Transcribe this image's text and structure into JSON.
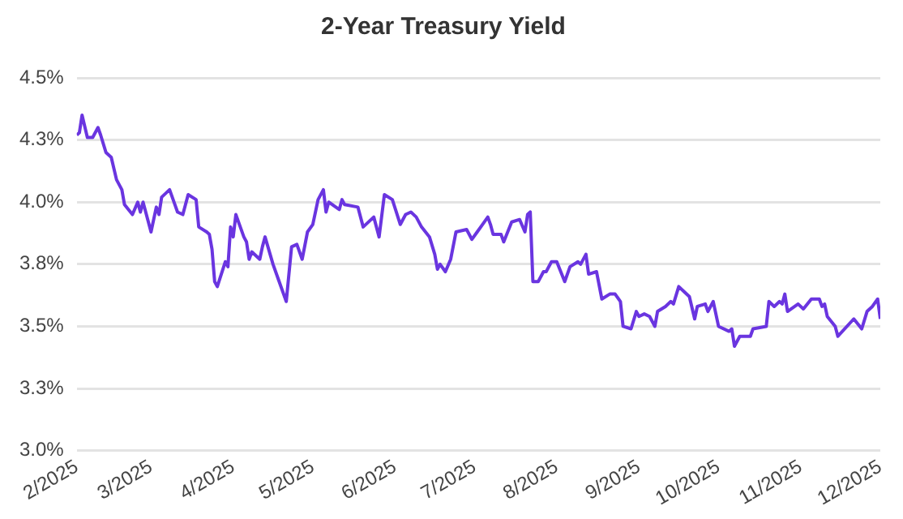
{
  "chart_data": {
    "type": "line",
    "title": "2-Year Treasury Yield",
    "x": [
      "2025-02-01",
      "2025-02-02",
      "2025-02-03",
      "2025-02-05",
      "2025-02-07",
      "2025-02-09",
      "2025-02-10",
      "2025-02-12",
      "2025-02-14",
      "2025-02-16",
      "2025-02-18",
      "2025-02-19",
      "2025-02-22",
      "2025-02-24",
      "2025-02-25",
      "2025-02-26",
      "2025-03-01",
      "2025-03-03",
      "2025-03-04",
      "2025-03-05",
      "2025-03-08",
      "2025-03-11",
      "2025-03-13",
      "2025-03-15",
      "2025-03-18",
      "2025-03-19",
      "2025-03-22",
      "2025-03-23",
      "2025-03-24",
      "2025-03-25",
      "2025-03-26",
      "2025-03-29",
      "2025-03-30",
      "2025-03-31",
      "2025-04-01",
      "2025-04-02",
      "2025-04-05",
      "2025-04-06",
      "2025-04-07",
      "2025-04-08",
      "2025-04-11",
      "2025-04-12",
      "2025-04-13",
      "2025-04-16",
      "2025-04-18",
      "2025-04-21",
      "2025-04-23",
      "2025-04-25",
      "2025-04-27",
      "2025-04-29",
      "2025-05-01",
      "2025-05-03",
      "2025-05-05",
      "2025-05-06",
      "2025-05-07",
      "2025-05-11",
      "2025-05-12",
      "2025-05-13",
      "2025-05-18",
      "2025-05-20",
      "2025-05-24",
      "2025-05-26",
      "2025-05-28",
      "2025-05-31",
      "2025-06-03",
      "2025-06-05",
      "2025-06-07",
      "2025-06-09",
      "2025-06-11",
      "2025-06-14",
      "2025-06-16",
      "2025-06-17",
      "2025-06-18",
      "2025-06-20",
      "2025-06-22",
      "2025-06-24",
      "2025-06-28",
      "2025-06-30",
      "2025-07-02",
      "2025-07-04",
      "2025-07-06",
      "2025-07-07",
      "2025-07-08",
      "2025-07-11",
      "2025-07-12",
      "2025-07-15",
      "2025-07-18",
      "2025-07-20",
      "2025-07-21",
      "2025-07-22",
      "2025-07-23",
      "2025-07-25",
      "2025-07-27",
      "2025-07-28",
      "2025-07-30",
      "2025-08-01",
      "2025-08-04",
      "2025-08-06",
      "2025-08-09",
      "2025-08-10",
      "2025-08-12",
      "2025-08-13",
      "2025-08-16",
      "2025-08-18",
      "2025-08-21",
      "2025-08-23",
      "2025-08-25",
      "2025-08-26",
      "2025-08-29",
      "2025-08-31",
      "2025-09-01",
      "2025-09-03",
      "2025-09-05",
      "2025-09-07",
      "2025-09-08",
      "2025-09-11",
      "2025-09-13",
      "2025-09-14",
      "2025-09-16",
      "2025-09-20",
      "2025-09-22",
      "2025-09-23",
      "2025-09-26",
      "2025-09-27",
      "2025-09-29",
      "2025-10-01",
      "2025-10-05",
      "2025-10-06",
      "2025-10-07",
      "2025-10-09",
      "2025-10-13",
      "2025-10-14",
      "2025-10-19",
      "2025-10-20",
      "2025-10-22",
      "2025-10-24",
      "2025-10-25",
      "2025-10-26",
      "2025-10-27",
      "2025-10-31",
      "2025-11-02",
      "2025-11-05",
      "2025-11-08",
      "2025-11-09",
      "2025-11-10",
      "2025-11-11",
      "2025-11-14",
      "2025-11-15",
      "2025-11-21",
      "2025-11-24",
      "2025-11-26",
      "2025-11-28",
      "2025-11-30",
      "2025-12-01"
    ],
    "series": [
      {
        "color": "#6a35e0",
        "values": [
          4.27,
          4.28,
          4.35,
          4.26,
          4.26,
          4.3,
          4.27,
          4.2,
          4.18,
          4.09,
          4.05,
          3.99,
          3.95,
          4.0,
          3.96,
          4.0,
          3.88,
          3.98,
          3.95,
          4.02,
          4.05,
          3.96,
          3.95,
          4.03,
          4.01,
          3.9,
          3.88,
          3.87,
          3.81,
          3.68,
          3.66,
          3.76,
          3.74,
          3.9,
          3.86,
          3.95,
          3.86,
          3.84,
          3.77,
          3.8,
          3.77,
          3.82,
          3.86,
          3.75,
          3.69,
          3.6,
          3.82,
          3.83,
          3.77,
          3.88,
          3.91,
          4.01,
          4.05,
          3.96,
          4.0,
          3.97,
          4.01,
          3.99,
          3.98,
          3.9,
          3.94,
          3.86,
          4.03,
          4.01,
          3.91,
          3.95,
          3.96,
          3.94,
          3.9,
          3.86,
          3.79,
          3.73,
          3.75,
          3.72,
          3.77,
          3.88,
          3.89,
          3.85,
          3.88,
          3.91,
          3.94,
          3.91,
          3.87,
          3.87,
          3.84,
          3.92,
          3.93,
          3.88,
          3.95,
          3.96,
          3.68,
          3.68,
          3.72,
          3.72,
          3.76,
          3.76,
          3.68,
          3.74,
          3.76,
          3.75,
          3.79,
          3.71,
          3.72,
          3.61,
          3.63,
          3.63,
          3.6,
          3.5,
          3.49,
          3.56,
          3.54,
          3.55,
          3.54,
          3.5,
          3.56,
          3.58,
          3.6,
          3.59,
          3.66,
          3.62,
          3.53,
          3.58,
          3.59,
          3.56,
          3.6,
          3.5,
          3.48,
          3.49,
          3.42,
          3.46,
          3.46,
          3.49,
          3.5,
          3.6,
          3.58,
          3.6,
          3.59,
          3.63,
          3.56,
          3.59,
          3.57,
          3.61,
          3.61,
          3.58,
          3.59,
          3.54,
          3.5,
          3.46,
          3.53,
          3.49,
          3.56,
          3.58,
          3.61,
          3.53
        ]
      }
    ],
    "xlim": [
      "2025-02-01",
      "2025-12-01"
    ],
    "xticks": [
      {
        "value": "2025-02-01",
        "label": "2/2025"
      },
      {
        "value": "2025-03-01",
        "label": "3/2025"
      },
      {
        "value": "2025-04-01",
        "label": "4/2025"
      },
      {
        "value": "2025-05-01",
        "label": "5/2025"
      },
      {
        "value": "2025-06-01",
        "label": "6/2025"
      },
      {
        "value": "2025-07-01",
        "label": "7/2025"
      },
      {
        "value": "2025-08-01",
        "label": "8/2025"
      },
      {
        "value": "2025-09-01",
        "label": "9/2025"
      },
      {
        "value": "2025-10-01",
        "label": "10/2025"
      },
      {
        "value": "2025-11-01",
        "label": "11/2025"
      },
      {
        "value": "2025-12-01",
        "label": "12/2025"
      }
    ],
    "ylim": [
      3.0,
      4.5
    ],
    "yticks": [
      {
        "value": 3.0,
        "label": "3.0%"
      },
      {
        "value": 3.25,
        "label": "3.3%"
      },
      {
        "value": 3.5,
        "label": "3.5%"
      },
      {
        "value": 3.75,
        "label": "3.8%"
      },
      {
        "value": 4.0,
        "label": "4.0%"
      },
      {
        "value": 4.25,
        "label": "4.3%"
      },
      {
        "value": 4.5,
        "label": "4.5%"
      }
    ],
    "grid": "y",
    "legend": false,
    "marker": "none",
    "line_style": "solid"
  }
}
